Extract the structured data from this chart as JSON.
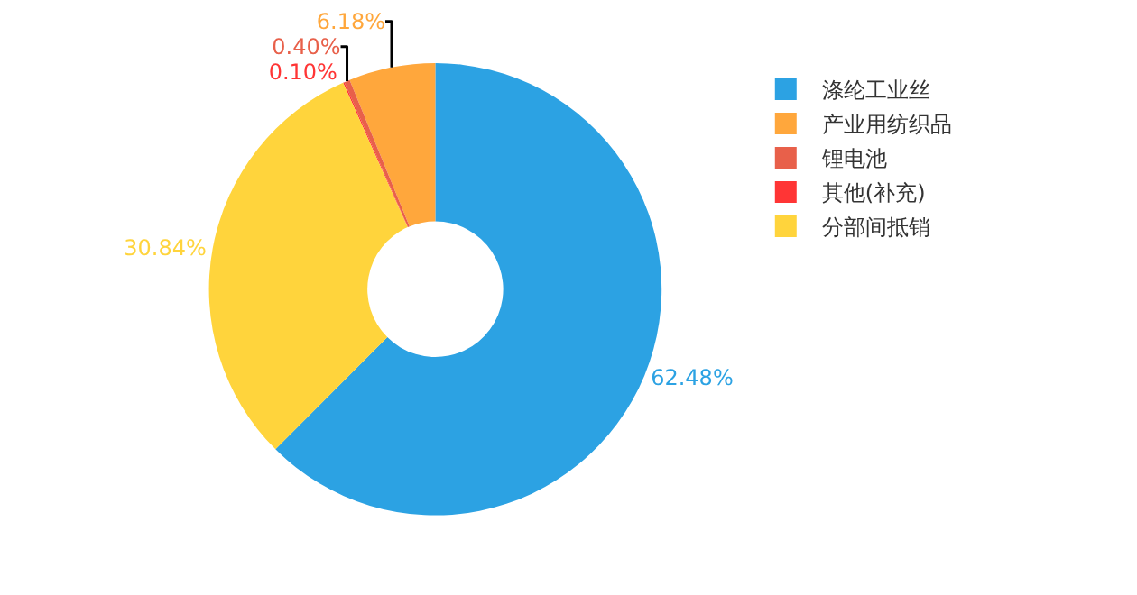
{
  "chart_data": {
    "type": "donut",
    "categories": [
      "涤纶工业丝",
      "产业用纺织品",
      "锂电池",
      "其他(补充)",
      "分部间抵销"
    ],
    "values": [
      62.48,
      6.18,
      0.4,
      0.1,
      30.84
    ],
    "colors": [
      "#2ca2e3",
      "#ffa73c",
      "#e8604a",
      "#ff3535",
      "#ffd43c"
    ],
    "value_labels": [
      "62.48%",
      "6.18%",
      "0.40%",
      "0.10%",
      "30.84%"
    ],
    "legend": "top right"
  }
}
